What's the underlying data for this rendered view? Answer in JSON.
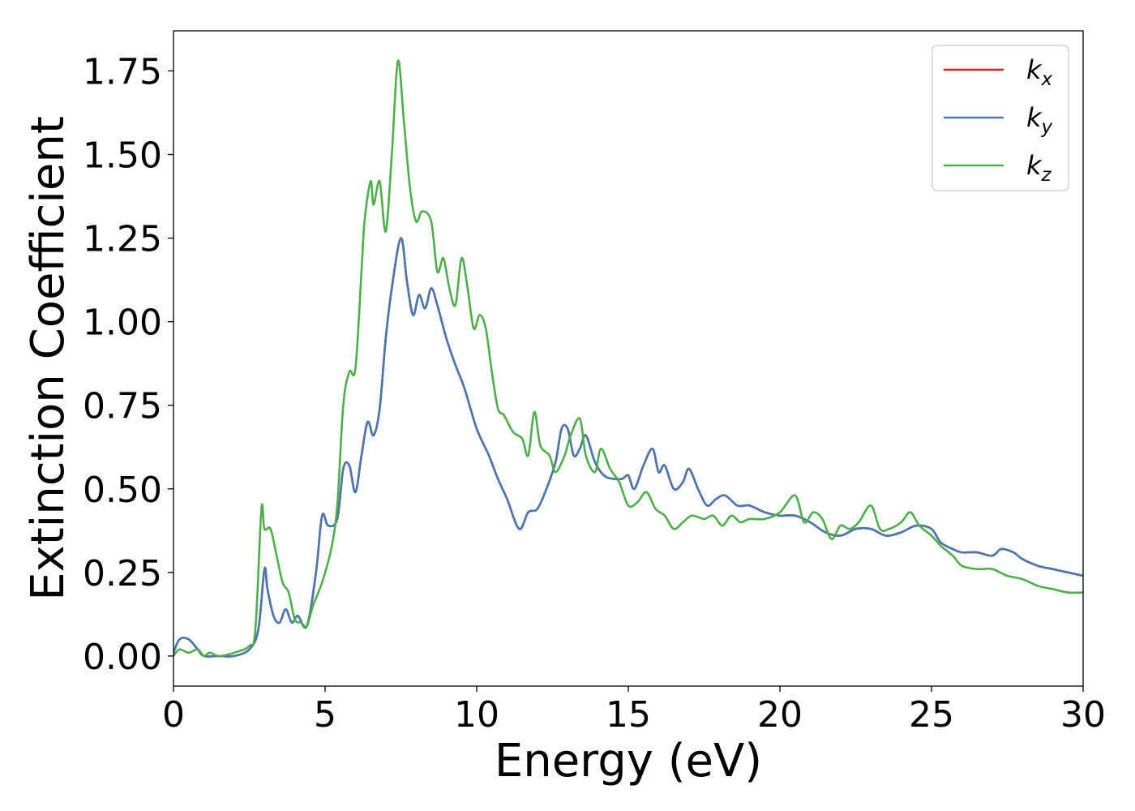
{
  "chart_data": {
    "type": "line",
    "xlabel": "Energy (eV)",
    "ylabel": "Extinction Coefficient",
    "xlim": [
      0,
      30
    ],
    "ylim": [
      -0.09,
      1.87
    ],
    "xticks": [
      0,
      5,
      10,
      15,
      20,
      25,
      30
    ],
    "xtick_labels": [
      "0",
      "5",
      "10",
      "15",
      "20",
      "25",
      "30"
    ],
    "yticks": [
      0.0,
      0.25,
      0.5,
      0.75,
      1.0,
      1.25,
      1.5,
      1.75
    ],
    "ytick_labels": [
      "0.00",
      "0.25",
      "0.50",
      "0.75",
      "1.00",
      "1.25",
      "1.50",
      "1.75"
    ],
    "grid": false,
    "legend_position": "top-right",
    "series": [
      {
        "name": "k_x",
        "legend_base": "k",
        "legend_sub": "x",
        "color": "#e41a1c",
        "points": [
          [
            0,
            0.01
          ],
          [
            0.2,
            0.05
          ],
          [
            0.5,
            0.05
          ],
          [
            0.8,
            0.02
          ],
          [
            1.0,
            0.0
          ],
          [
            1.5,
            0.0
          ],
          [
            2.0,
            0.0
          ],
          [
            2.5,
            0.02
          ],
          [
            2.8,
            0.08
          ],
          [
            3.0,
            0.26
          ],
          [
            3.1,
            0.2
          ],
          [
            3.3,
            0.12
          ],
          [
            3.5,
            0.1
          ],
          [
            3.7,
            0.14
          ],
          [
            3.9,
            0.1
          ],
          [
            4.1,
            0.12
          ],
          [
            4.4,
            0.09
          ],
          [
            4.7,
            0.25
          ],
          [
            4.9,
            0.42
          ],
          [
            5.1,
            0.39
          ],
          [
            5.4,
            0.41
          ],
          [
            5.6,
            0.56
          ],
          [
            5.8,
            0.57
          ],
          [
            6.0,
            0.49
          ],
          [
            6.2,
            0.6
          ],
          [
            6.4,
            0.7
          ],
          [
            6.6,
            0.66
          ],
          [
            6.8,
            0.74
          ],
          [
            7.0,
            0.95
          ],
          [
            7.2,
            1.1
          ],
          [
            7.5,
            1.25
          ],
          [
            7.7,
            1.12
          ],
          [
            7.9,
            1.02
          ],
          [
            8.1,
            1.08
          ],
          [
            8.3,
            1.04
          ],
          [
            8.5,
            1.1
          ],
          [
            8.7,
            1.05
          ],
          [
            9.0,
            0.95
          ],
          [
            9.3,
            0.87
          ],
          [
            9.6,
            0.8
          ],
          [
            10.0,
            0.68
          ],
          [
            10.4,
            0.6
          ],
          [
            10.7,
            0.53
          ],
          [
            11.0,
            0.47
          ],
          [
            11.4,
            0.38
          ],
          [
            11.7,
            0.43
          ],
          [
            12.0,
            0.44
          ],
          [
            12.3,
            0.5
          ],
          [
            12.6,
            0.58
          ],
          [
            12.8,
            0.68
          ],
          [
            13.0,
            0.68
          ],
          [
            13.2,
            0.6
          ],
          [
            13.4,
            0.62
          ],
          [
            13.6,
            0.66
          ],
          [
            13.9,
            0.58
          ],
          [
            14.2,
            0.54
          ],
          [
            14.5,
            0.53
          ],
          [
            14.8,
            0.53
          ],
          [
            15.0,
            0.54
          ],
          [
            15.2,
            0.5
          ],
          [
            15.5,
            0.57
          ],
          [
            15.8,
            0.62
          ],
          [
            16.0,
            0.55
          ],
          [
            16.2,
            0.57
          ],
          [
            16.5,
            0.5
          ],
          [
            16.8,
            0.52
          ],
          [
            17.0,
            0.56
          ],
          [
            17.3,
            0.5
          ],
          [
            17.6,
            0.45
          ],
          [
            17.9,
            0.47
          ],
          [
            18.2,
            0.48
          ],
          [
            18.6,
            0.45
          ],
          [
            19.0,
            0.45
          ],
          [
            19.5,
            0.43
          ],
          [
            20.0,
            0.42
          ],
          [
            20.5,
            0.42
          ],
          [
            21.0,
            0.4
          ],
          [
            21.5,
            0.37
          ],
          [
            22.0,
            0.36
          ],
          [
            22.5,
            0.38
          ],
          [
            23.0,
            0.38
          ],
          [
            23.5,
            0.36
          ],
          [
            24.0,
            0.37
          ],
          [
            24.5,
            0.39
          ],
          [
            25.0,
            0.38
          ],
          [
            25.3,
            0.34
          ],
          [
            25.7,
            0.32
          ],
          [
            26.0,
            0.31
          ],
          [
            26.5,
            0.31
          ],
          [
            27.0,
            0.3
          ],
          [
            27.3,
            0.32
          ],
          [
            27.7,
            0.31
          ],
          [
            28.0,
            0.29
          ],
          [
            28.5,
            0.27
          ],
          [
            29.0,
            0.26
          ],
          [
            29.5,
            0.25
          ],
          [
            30.0,
            0.24
          ]
        ]
      },
      {
        "name": "k_y",
        "legend_base": "k",
        "legend_sub": "y",
        "color": "#4878b0",
        "points": [
          [
            0,
            0.01
          ],
          [
            0.2,
            0.05
          ],
          [
            0.5,
            0.05
          ],
          [
            0.8,
            0.02
          ],
          [
            1.0,
            0.0
          ],
          [
            1.5,
            0.0
          ],
          [
            2.0,
            0.0
          ],
          [
            2.5,
            0.02
          ],
          [
            2.8,
            0.08
          ],
          [
            3.0,
            0.26
          ],
          [
            3.1,
            0.2
          ],
          [
            3.3,
            0.12
          ],
          [
            3.5,
            0.1
          ],
          [
            3.7,
            0.14
          ],
          [
            3.9,
            0.1
          ],
          [
            4.1,
            0.12
          ],
          [
            4.4,
            0.09
          ],
          [
            4.7,
            0.25
          ],
          [
            4.9,
            0.42
          ],
          [
            5.1,
            0.39
          ],
          [
            5.4,
            0.41
          ],
          [
            5.6,
            0.56
          ],
          [
            5.8,
            0.57
          ],
          [
            6.0,
            0.49
          ],
          [
            6.2,
            0.6
          ],
          [
            6.4,
            0.7
          ],
          [
            6.6,
            0.66
          ],
          [
            6.8,
            0.74
          ],
          [
            7.0,
            0.95
          ],
          [
            7.2,
            1.1
          ],
          [
            7.5,
            1.25
          ],
          [
            7.7,
            1.12
          ],
          [
            7.9,
            1.02
          ],
          [
            8.1,
            1.08
          ],
          [
            8.3,
            1.04
          ],
          [
            8.5,
            1.1
          ],
          [
            8.7,
            1.05
          ],
          [
            9.0,
            0.95
          ],
          [
            9.3,
            0.87
          ],
          [
            9.6,
            0.8
          ],
          [
            10.0,
            0.68
          ],
          [
            10.4,
            0.6
          ],
          [
            10.7,
            0.53
          ],
          [
            11.0,
            0.47
          ],
          [
            11.4,
            0.38
          ],
          [
            11.7,
            0.43
          ],
          [
            12.0,
            0.44
          ],
          [
            12.3,
            0.5
          ],
          [
            12.6,
            0.58
          ],
          [
            12.8,
            0.68
          ],
          [
            13.0,
            0.68
          ],
          [
            13.2,
            0.6
          ],
          [
            13.4,
            0.62
          ],
          [
            13.6,
            0.66
          ],
          [
            13.9,
            0.58
          ],
          [
            14.2,
            0.54
          ],
          [
            14.5,
            0.53
          ],
          [
            14.8,
            0.53
          ],
          [
            15.0,
            0.54
          ],
          [
            15.2,
            0.5
          ],
          [
            15.5,
            0.57
          ],
          [
            15.8,
            0.62
          ],
          [
            16.0,
            0.55
          ],
          [
            16.2,
            0.57
          ],
          [
            16.5,
            0.5
          ],
          [
            16.8,
            0.52
          ],
          [
            17.0,
            0.56
          ],
          [
            17.3,
            0.5
          ],
          [
            17.6,
            0.45
          ],
          [
            17.9,
            0.47
          ],
          [
            18.2,
            0.48
          ],
          [
            18.6,
            0.45
          ],
          [
            19.0,
            0.45
          ],
          [
            19.5,
            0.43
          ],
          [
            20.0,
            0.42
          ],
          [
            20.5,
            0.42
          ],
          [
            21.0,
            0.4
          ],
          [
            21.5,
            0.37
          ],
          [
            22.0,
            0.36
          ],
          [
            22.5,
            0.38
          ],
          [
            23.0,
            0.38
          ],
          [
            23.5,
            0.36
          ],
          [
            24.0,
            0.37
          ],
          [
            24.5,
            0.39
          ],
          [
            25.0,
            0.38
          ],
          [
            25.3,
            0.34
          ],
          [
            25.7,
            0.32
          ],
          [
            26.0,
            0.31
          ],
          [
            26.5,
            0.31
          ],
          [
            27.0,
            0.3
          ],
          [
            27.3,
            0.32
          ],
          [
            27.7,
            0.31
          ],
          [
            28.0,
            0.29
          ],
          [
            28.5,
            0.27
          ],
          [
            29.0,
            0.26
          ],
          [
            29.5,
            0.25
          ],
          [
            30.0,
            0.24
          ]
        ]
      },
      {
        "name": "k_z",
        "legend_base": "k",
        "legend_sub": "z",
        "color": "#4daf4a",
        "points": [
          [
            0,
            0.0
          ],
          [
            0.2,
            0.02
          ],
          [
            0.5,
            0.01
          ],
          [
            0.8,
            0.02
          ],
          [
            1.0,
            0.0
          ],
          [
            1.2,
            0.01
          ],
          [
            1.5,
            0.0
          ],
          [
            2.0,
            0.01
          ],
          [
            2.5,
            0.03
          ],
          [
            2.7,
            0.08
          ],
          [
            2.9,
            0.44
          ],
          [
            3.0,
            0.38
          ],
          [
            3.2,
            0.38
          ],
          [
            3.4,
            0.3
          ],
          [
            3.6,
            0.22
          ],
          [
            3.8,
            0.19
          ],
          [
            4.0,
            0.11
          ],
          [
            4.2,
            0.1
          ],
          [
            4.4,
            0.09
          ],
          [
            4.6,
            0.15
          ],
          [
            4.9,
            0.22
          ],
          [
            5.2,
            0.32
          ],
          [
            5.4,
            0.45
          ],
          [
            5.6,
            0.75
          ],
          [
            5.8,
            0.85
          ],
          [
            6.0,
            0.86
          ],
          [
            6.2,
            1.15
          ],
          [
            6.3,
            1.3
          ],
          [
            6.5,
            1.42
          ],
          [
            6.6,
            1.35
          ],
          [
            6.8,
            1.42
          ],
          [
            7.0,
            1.27
          ],
          [
            7.2,
            1.5
          ],
          [
            7.4,
            1.78
          ],
          [
            7.6,
            1.6
          ],
          [
            7.8,
            1.4
          ],
          [
            8.0,
            1.3
          ],
          [
            8.2,
            1.33
          ],
          [
            8.5,
            1.3
          ],
          [
            8.7,
            1.15
          ],
          [
            8.9,
            1.19
          ],
          [
            9.1,
            1.1
          ],
          [
            9.3,
            1.05
          ],
          [
            9.5,
            1.19
          ],
          [
            9.7,
            1.1
          ],
          [
            9.9,
            0.98
          ],
          [
            10.1,
            1.02
          ],
          [
            10.3,
            0.98
          ],
          [
            10.5,
            0.85
          ],
          [
            10.7,
            0.74
          ],
          [
            10.9,
            0.72
          ],
          [
            11.2,
            0.67
          ],
          [
            11.5,
            0.65
          ],
          [
            11.7,
            0.6
          ],
          [
            11.9,
            0.73
          ],
          [
            12.1,
            0.63
          ],
          [
            12.4,
            0.6
          ],
          [
            12.6,
            0.55
          ],
          [
            12.9,
            0.6
          ],
          [
            13.1,
            0.66
          ],
          [
            13.4,
            0.71
          ],
          [
            13.6,
            0.6
          ],
          [
            13.9,
            0.55
          ],
          [
            14.1,
            0.62
          ],
          [
            14.4,
            0.56
          ],
          [
            14.7,
            0.52
          ],
          [
            15.0,
            0.45
          ],
          [
            15.3,
            0.46
          ],
          [
            15.6,
            0.49
          ],
          [
            15.9,
            0.44
          ],
          [
            16.2,
            0.42
          ],
          [
            16.5,
            0.38
          ],
          [
            16.8,
            0.4
          ],
          [
            17.1,
            0.42
          ],
          [
            17.5,
            0.41
          ],
          [
            17.8,
            0.42
          ],
          [
            18.1,
            0.39
          ],
          [
            18.4,
            0.42
          ],
          [
            18.7,
            0.4
          ],
          [
            19.0,
            0.41
          ],
          [
            19.5,
            0.41
          ],
          [
            20.0,
            0.43
          ],
          [
            20.5,
            0.48
          ],
          [
            20.8,
            0.4
          ],
          [
            21.1,
            0.43
          ],
          [
            21.4,
            0.41
          ],
          [
            21.7,
            0.35
          ],
          [
            22.0,
            0.39
          ],
          [
            22.3,
            0.38
          ],
          [
            22.6,
            0.4
          ],
          [
            23.0,
            0.45
          ],
          [
            23.3,
            0.38
          ],
          [
            23.6,
            0.38
          ],
          [
            24.0,
            0.4
          ],
          [
            24.3,
            0.43
          ],
          [
            24.6,
            0.39
          ],
          [
            25.0,
            0.36
          ],
          [
            25.3,
            0.33
          ],
          [
            25.7,
            0.3
          ],
          [
            26.0,
            0.27
          ],
          [
            26.5,
            0.26
          ],
          [
            27.0,
            0.26
          ],
          [
            27.5,
            0.24
          ],
          [
            28.0,
            0.23
          ],
          [
            28.5,
            0.21
          ],
          [
            29.0,
            0.2
          ],
          [
            29.5,
            0.19
          ],
          [
            30.0,
            0.19
          ]
        ]
      }
    ]
  }
}
